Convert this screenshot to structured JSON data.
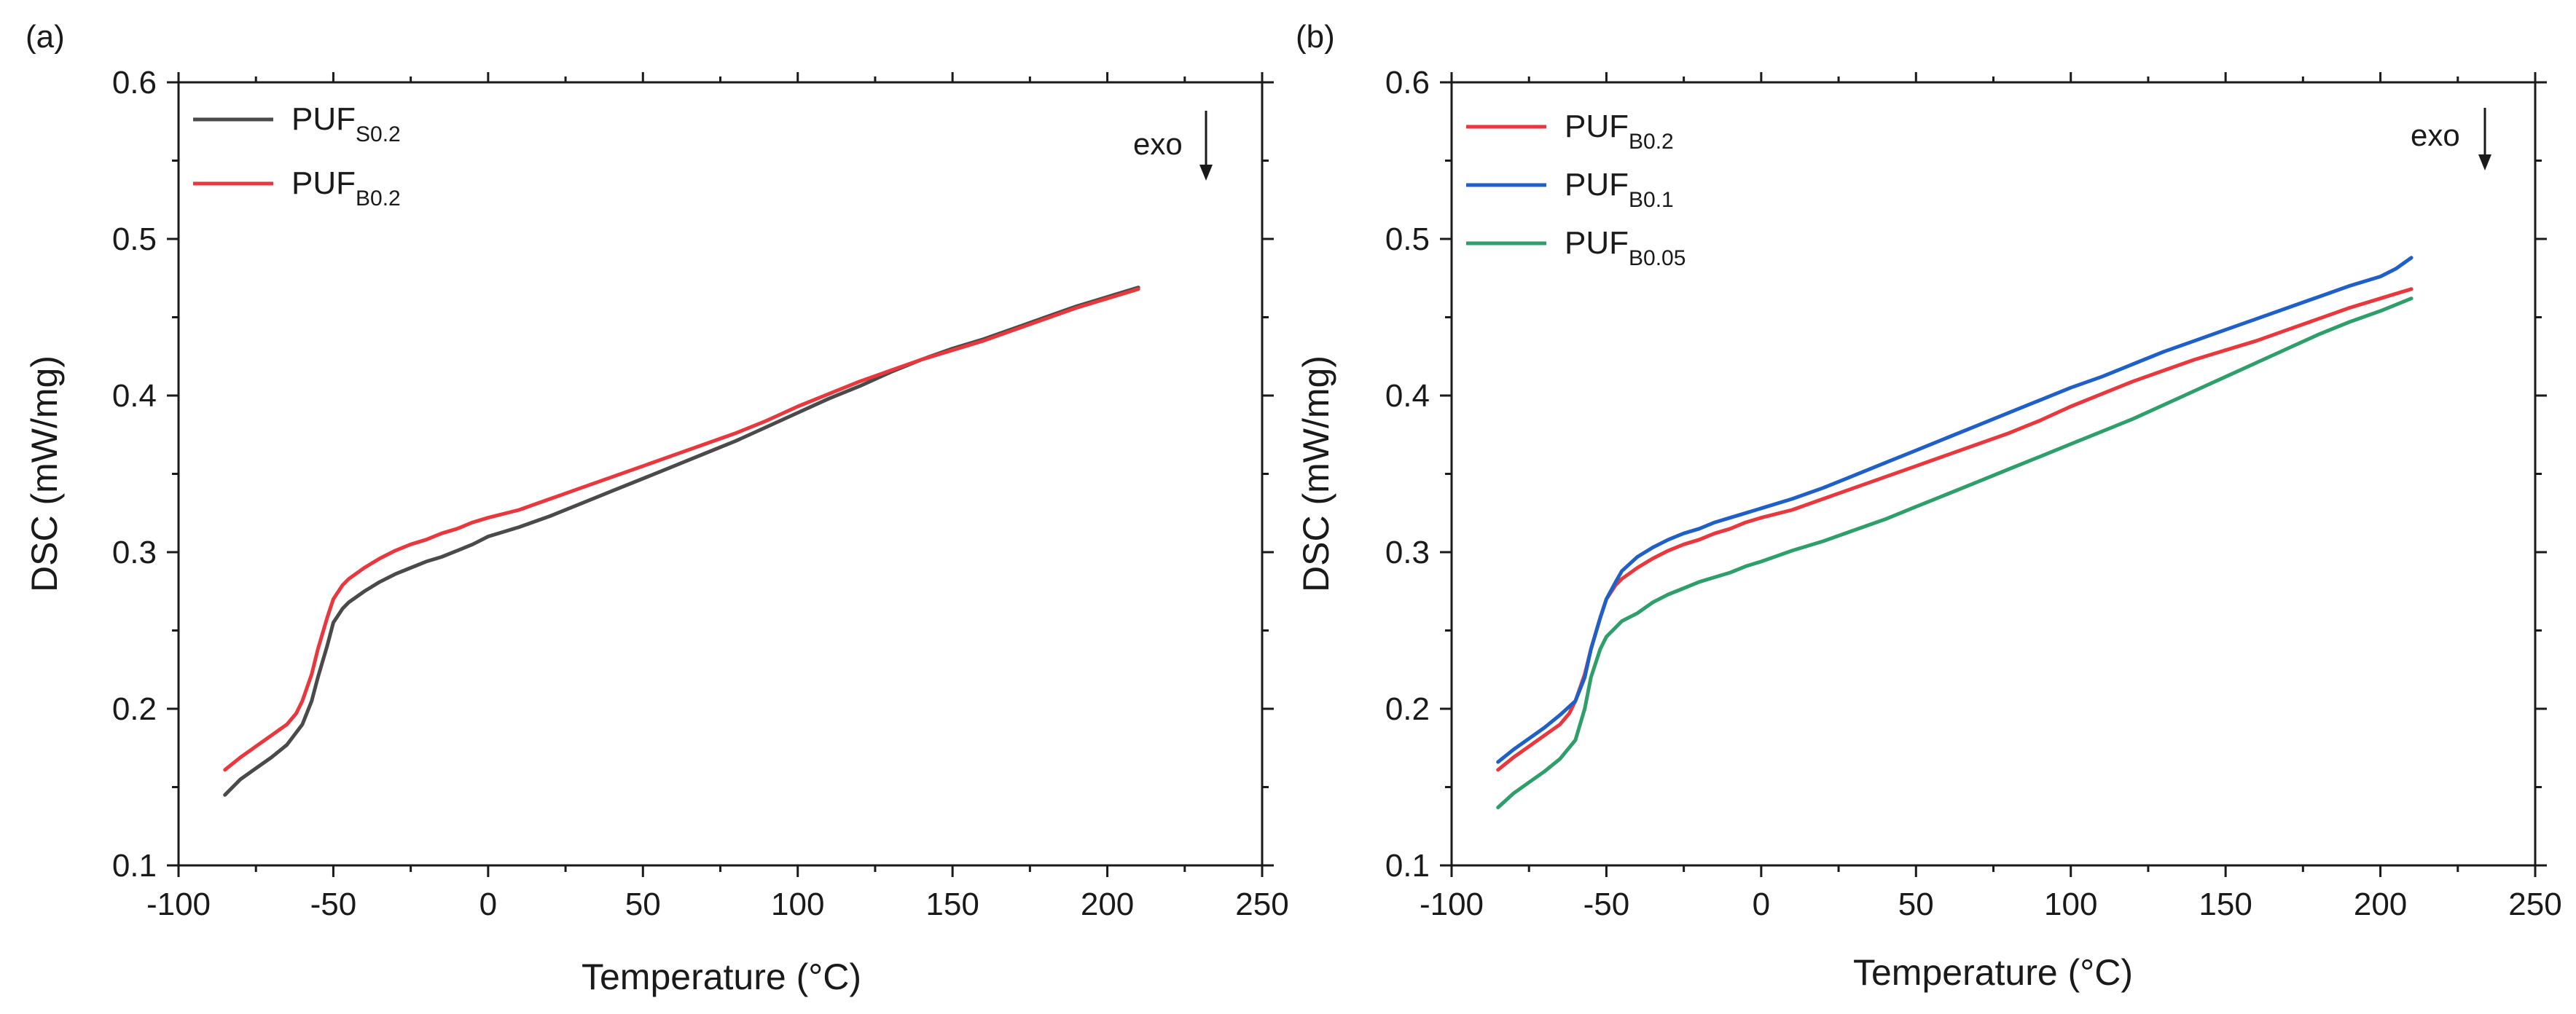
{
  "chart_data": [
    {
      "type": "line",
      "panel_label": "(a)",
      "xlabel": "Temperature (°C)",
      "ylabel": "DSC (mW/mg)",
      "xlim": [
        -100,
        250
      ],
      "ylim": [
        0.1,
        0.6
      ],
      "xticks": [
        -100,
        -50,
        0,
        50,
        100,
        150,
        200,
        250
      ],
      "xtick_labels": [
        "-100",
        "-50",
        "0",
        "50",
        "100",
        "150",
        "200",
        "250"
      ],
      "yticks": [
        0.1,
        0.2,
        0.3,
        0.4,
        0.5,
        0.6
      ],
      "ytick_labels": [
        "0.1",
        "0.2",
        "0.3",
        "0.4",
        "0.5",
        "0.6"
      ],
      "legend_position": "top-left",
      "annotation": {
        "text": "exo",
        "arrow": "down",
        "position": "top-right"
      },
      "series": [
        {
          "name": "PUF",
          "subscript": "S0.2",
          "color": "#4a4a4a",
          "x": [
            -85,
            -80,
            -75,
            -70,
            -65,
            -60,
            -57,
            -55,
            -52,
            -50,
            -47,
            -45,
            -40,
            -35,
            -30,
            -25,
            -20,
            -15,
            -10,
            -5,
            0,
            10,
            20,
            30,
            40,
            50,
            60,
            70,
            80,
            90,
            100,
            110,
            120,
            130,
            140,
            150,
            160,
            170,
            180,
            190,
            200,
            210
          ],
          "y": [
            0.145,
            0.155,
            0.162,
            0.169,
            0.177,
            0.19,
            0.205,
            0.22,
            0.24,
            0.255,
            0.264,
            0.268,
            0.275,
            0.281,
            0.286,
            0.29,
            0.294,
            0.297,
            0.301,
            0.305,
            0.31,
            0.316,
            0.323,
            0.331,
            0.339,
            0.347,
            0.355,
            0.363,
            0.371,
            0.38,
            0.389,
            0.398,
            0.406,
            0.415,
            0.423,
            0.43,
            0.436,
            0.443,
            0.45,
            0.457,
            0.463,
            0.469
          ]
        },
        {
          "name": "PUF",
          "subscript": "B0.2",
          "color": "#e8383d",
          "x": [
            -85,
            -80,
            -75,
            -70,
            -65,
            -62,
            -60,
            -57,
            -55,
            -52,
            -50,
            -47,
            -45,
            -40,
            -35,
            -30,
            -25,
            -20,
            -15,
            -10,
            -5,
            0,
            10,
            20,
            30,
            40,
            50,
            60,
            70,
            80,
            90,
            100,
            110,
            120,
            130,
            140,
            150,
            160,
            170,
            180,
            190,
            200,
            210
          ],
          "y": [
            0.161,
            0.169,
            0.176,
            0.183,
            0.19,
            0.197,
            0.205,
            0.222,
            0.238,
            0.258,
            0.27,
            0.279,
            0.283,
            0.29,
            0.296,
            0.301,
            0.305,
            0.308,
            0.312,
            0.315,
            0.319,
            0.322,
            0.327,
            0.334,
            0.341,
            0.348,
            0.355,
            0.362,
            0.369,
            0.376,
            0.384,
            0.393,
            0.401,
            0.409,
            0.416,
            0.423,
            0.429,
            0.435,
            0.442,
            0.449,
            0.456,
            0.462,
            0.468
          ]
        }
      ]
    },
    {
      "type": "line",
      "panel_label": "(b)",
      "xlabel": "Temperature (°C)",
      "ylabel": "DSC (mW/mg)",
      "xlim": [
        -100,
        250
      ],
      "ylim": [
        0.1,
        0.6
      ],
      "xticks": [
        -100,
        -50,
        0,
        50,
        100,
        150,
        200,
        250
      ],
      "xtick_labels": [
        "-100",
        "-50",
        "0",
        "50",
        "100",
        "150",
        "200",
        "250"
      ],
      "yticks": [
        0.1,
        0.2,
        0.3,
        0.4,
        0.5,
        0.6
      ],
      "ytick_labels": [
        "0.1",
        "0.2",
        "0.3",
        "0.4",
        "0.5",
        "0.6"
      ],
      "legend_position": "top-left",
      "annotation": {
        "text": "exo",
        "arrow": "down",
        "position": "top-right"
      },
      "series": [
        {
          "name": "PUF",
          "subscript": "B0.2",
          "color": "#e8383d",
          "x": [
            -85,
            -80,
            -75,
            -70,
            -65,
            -62,
            -60,
            -57,
            -55,
            -52,
            -50,
            -47,
            -45,
            -40,
            -35,
            -30,
            -25,
            -20,
            -15,
            -10,
            -5,
            0,
            10,
            20,
            30,
            40,
            50,
            60,
            70,
            80,
            90,
            100,
            110,
            120,
            130,
            140,
            150,
            160,
            170,
            180,
            190,
            200,
            210
          ],
          "y": [
            0.161,
            0.169,
            0.176,
            0.183,
            0.19,
            0.197,
            0.205,
            0.222,
            0.238,
            0.258,
            0.27,
            0.279,
            0.283,
            0.29,
            0.296,
            0.301,
            0.305,
            0.308,
            0.312,
            0.315,
            0.319,
            0.322,
            0.327,
            0.334,
            0.341,
            0.348,
            0.355,
            0.362,
            0.369,
            0.376,
            0.384,
            0.393,
            0.401,
            0.409,
            0.416,
            0.423,
            0.429,
            0.435,
            0.442,
            0.449,
            0.456,
            0.462,
            0.468
          ]
        },
        {
          "name": "PUF",
          "subscript": "B0.1",
          "color": "#1f5fc8",
          "x": [
            -85,
            -80,
            -75,
            -70,
            -65,
            -60,
            -57,
            -55,
            -52,
            -50,
            -47,
            -45,
            -40,
            -35,
            -30,
            -25,
            -20,
            -15,
            -10,
            -5,
            0,
            10,
            20,
            30,
            40,
            50,
            60,
            70,
            80,
            90,
            100,
            110,
            120,
            130,
            140,
            150,
            160,
            170,
            180,
            190,
            200,
            205,
            210
          ],
          "y": [
            0.166,
            0.174,
            0.181,
            0.188,
            0.196,
            0.205,
            0.22,
            0.238,
            0.258,
            0.27,
            0.281,
            0.288,
            0.297,
            0.303,
            0.308,
            0.312,
            0.315,
            0.319,
            0.322,
            0.325,
            0.328,
            0.334,
            0.341,
            0.349,
            0.357,
            0.365,
            0.373,
            0.381,
            0.389,
            0.397,
            0.405,
            0.412,
            0.42,
            0.428,
            0.435,
            0.442,
            0.449,
            0.456,
            0.463,
            0.47,
            0.476,
            0.481,
            0.488
          ]
        },
        {
          "name": "PUF",
          "subscript": "B0.05",
          "color": "#2e9e6b",
          "x": [
            -85,
            -80,
            -75,
            -70,
            -65,
            -60,
            -57,
            -55,
            -52,
            -50,
            -47,
            -45,
            -40,
            -35,
            -30,
            -25,
            -20,
            -15,
            -10,
            -5,
            0,
            10,
            20,
            30,
            40,
            50,
            60,
            70,
            80,
            90,
            100,
            110,
            120,
            130,
            140,
            150,
            160,
            170,
            180,
            190,
            200,
            210
          ],
          "y": [
            0.137,
            0.146,
            0.153,
            0.16,
            0.168,
            0.18,
            0.2,
            0.22,
            0.238,
            0.246,
            0.252,
            0.256,
            0.261,
            0.268,
            0.273,
            0.277,
            0.281,
            0.284,
            0.287,
            0.291,
            0.294,
            0.301,
            0.307,
            0.314,
            0.321,
            0.329,
            0.337,
            0.345,
            0.353,
            0.361,
            0.369,
            0.377,
            0.385,
            0.394,
            0.403,
            0.412,
            0.421,
            0.43,
            0.439,
            0.447,
            0.454,
            0.462
          ]
        }
      ]
    }
  ]
}
